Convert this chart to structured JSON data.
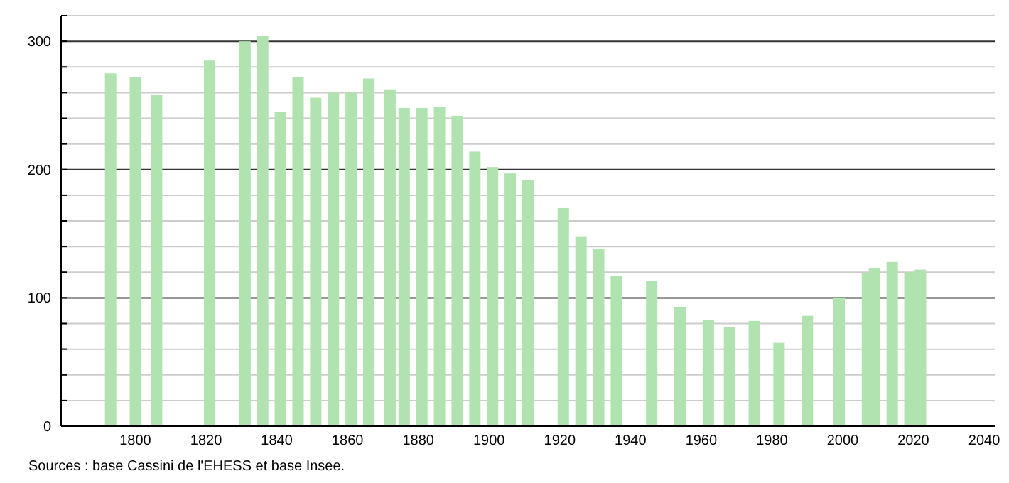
{
  "chart_data": {
    "type": "bar",
    "x": [
      1793,
      1800,
      1806,
      1821,
      1831,
      1836,
      1841,
      1846,
      1851,
      1856,
      1861,
      1866,
      1872,
      1876,
      1881,
      1886,
      1891,
      1896,
      1901,
      1906,
      1911,
      1921,
      1926,
      1931,
      1936,
      1946,
      1954,
      1962,
      1968,
      1975,
      1982,
      1990,
      1999,
      2007,
      2009,
      2014,
      2019,
      2022
    ],
    "values": [
      275,
      272,
      258,
      285,
      300,
      304,
      245,
      272,
      256,
      260,
      260,
      271,
      262,
      248,
      248,
      249,
      242,
      214,
      202,
      197,
      192,
      170,
      148,
      138,
      117,
      113,
      93,
      83,
      77,
      82,
      65,
      86,
      100,
      119,
      123,
      128,
      120,
      122
    ],
    "color": "#b0e3b0",
    "xlim": [
      1779,
      2043
    ],
    "xticks": [
      1800,
      1820,
      1840,
      1860,
      1880,
      1900,
      1920,
      1940,
      1960,
      1980,
      2000,
      2020,
      2040
    ],
    "ylim": [
      0,
      320
    ],
    "yticks": [
      0,
      {
        "value": 20,
        "label": null
      },
      {
        "value": 40,
        "label": null
      },
      {
        "value": 60,
        "label": null
      },
      {
        "value": 80,
        "label": null
      },
      100,
      {
        "value": 120,
        "label": null
      },
      {
        "value": 140,
        "label": null
      },
      {
        "value": 160,
        "label": null
      },
      {
        "value": 180,
        "label": null
      },
      200,
      {
        "value": 220,
        "label": null
      },
      {
        "value": 240,
        "label": null
      },
      {
        "value": 260,
        "label": null
      },
      {
        "value": 280,
        "label": null
      },
      300,
      {
        "value": 320,
        "label": null
      }
    ],
    "grid": "y",
    "annotations": [
      "Sources : base Cassini de l'EHESS et base Insee."
    ]
  }
}
